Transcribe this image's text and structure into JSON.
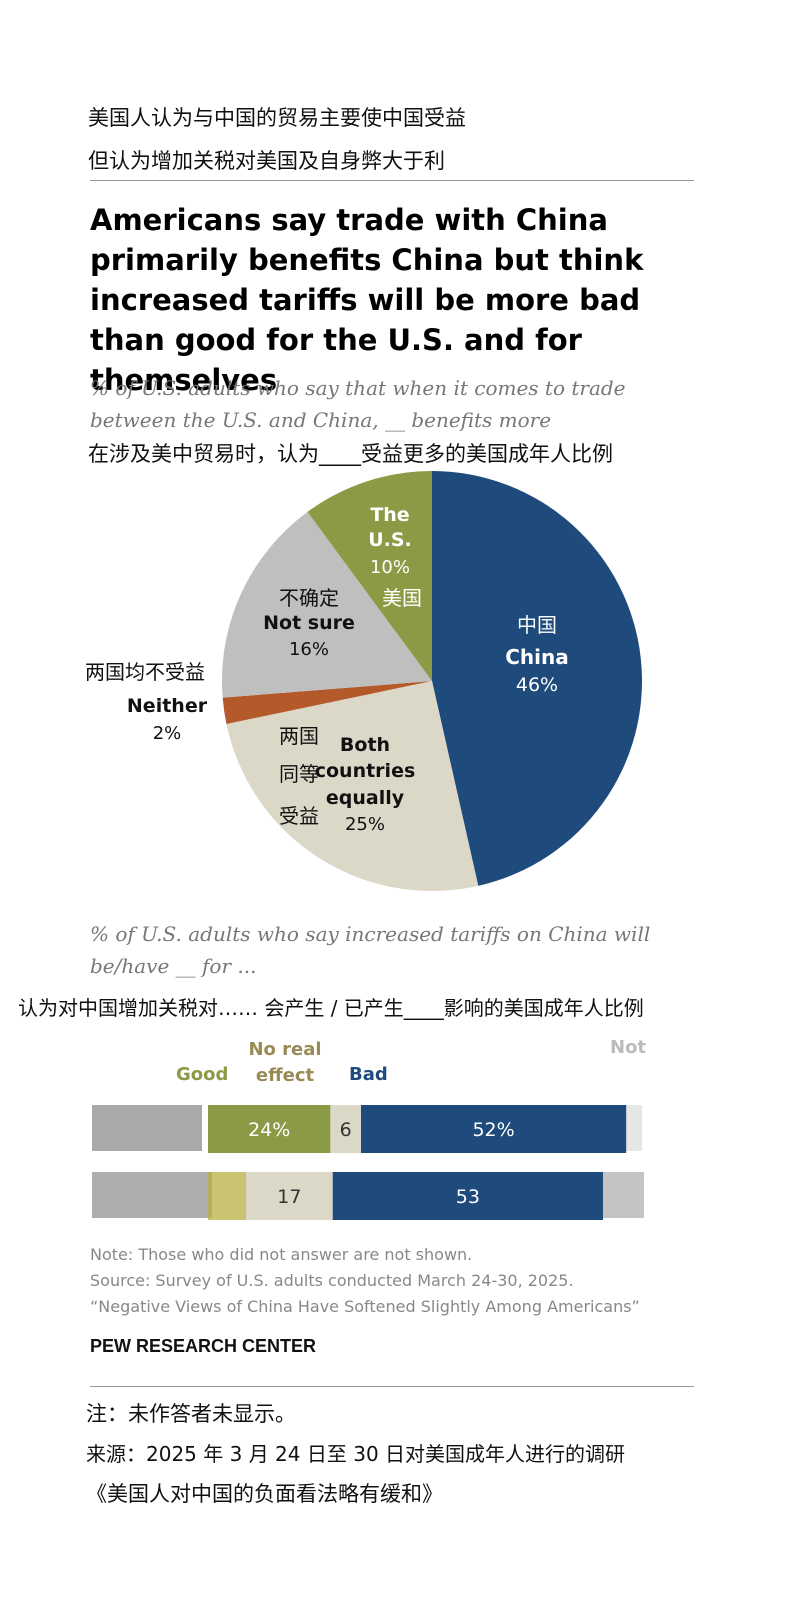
{
  "zh_header": {
    "line1": "美国人认为与中国的贸易主要使中国受益",
    "line2": "但认为增加关税对美国及自身弊大于利"
  },
  "title": "Americans say trade with China primarily benefits China but think increased tariffs will be more bad than good for the U.S. and for themselves",
  "pie_subtitle": {
    "line1": "% of U.S. adults who say that when it comes to trade",
    "line2": "between the U.S. and China, __ benefits more",
    "zh": "在涉及美中贸易时，认为____受益更多的美国成年人比例"
  },
  "bar_subtitle": {
    "line1": "% of U.S. adults who say increased tariffs on China will",
    "line2": "be/have __ for ...",
    "zh": "认为对中国增加关税对…… 会产生 / 已产生____影响的美国成年人比例"
  },
  "colors": {
    "china": "#1f4a7c",
    "us": "#8c9a45",
    "not_sure": "#bfbfbf",
    "neither": "#b3592a",
    "both": "#dcd8c8",
    "good": "#8c9a45",
    "no_effect": "#dcd8c8",
    "bad": "#1f4a7c",
    "no_effect_text": "#9a8a55"
  },
  "chart_data": [
    {
      "type": "pie",
      "slices": [
        {
          "label": "China",
          "zh": "中国",
          "value": 46,
          "value_label": "46%"
        },
        {
          "label": "Both countries equally",
          "zh": "两国同等受益",
          "value": 25,
          "value_label": "25%"
        },
        {
          "label": "Neither",
          "zh": "两国均不受益",
          "value": 2,
          "value_label": "2%"
        },
        {
          "label": "Not sure",
          "zh": "不确定",
          "value": 16,
          "value_label": "16%"
        },
        {
          "label": "The U.S.",
          "zh": "美国",
          "value": 10,
          "value_label": "10%"
        }
      ]
    },
    {
      "type": "bar",
      "stacked": true,
      "columns": [
        "Good",
        "No real effect",
        "Bad",
        "Not"
      ],
      "rows": [
        {
          "values": [
            24,
            6,
            52
          ],
          "labels": [
            "24%",
            "6",
            "52%"
          ]
        },
        {
          "values": [
            null,
            17,
            53
          ],
          "labels": [
            "",
            "17",
            "53"
          ]
        }
      ]
    }
  ],
  "notes": {
    "note": "Note: Those who did not answer are not shown.",
    "source": "Source: Survey of U.S. adults conducted March 24-30, 2025.",
    "report": "“Negative Views of China Have Softened Slightly Among Americans”",
    "pew": "PEW RESEARCH CENTER"
  },
  "zh_footer": {
    "note": "注：未作答者未显示。",
    "source": "来源：2025 年 3 月 24 日至 30 日对美国成年人进行的调研",
    "report": "《美国人对中国的负面看法略有缓和》"
  }
}
